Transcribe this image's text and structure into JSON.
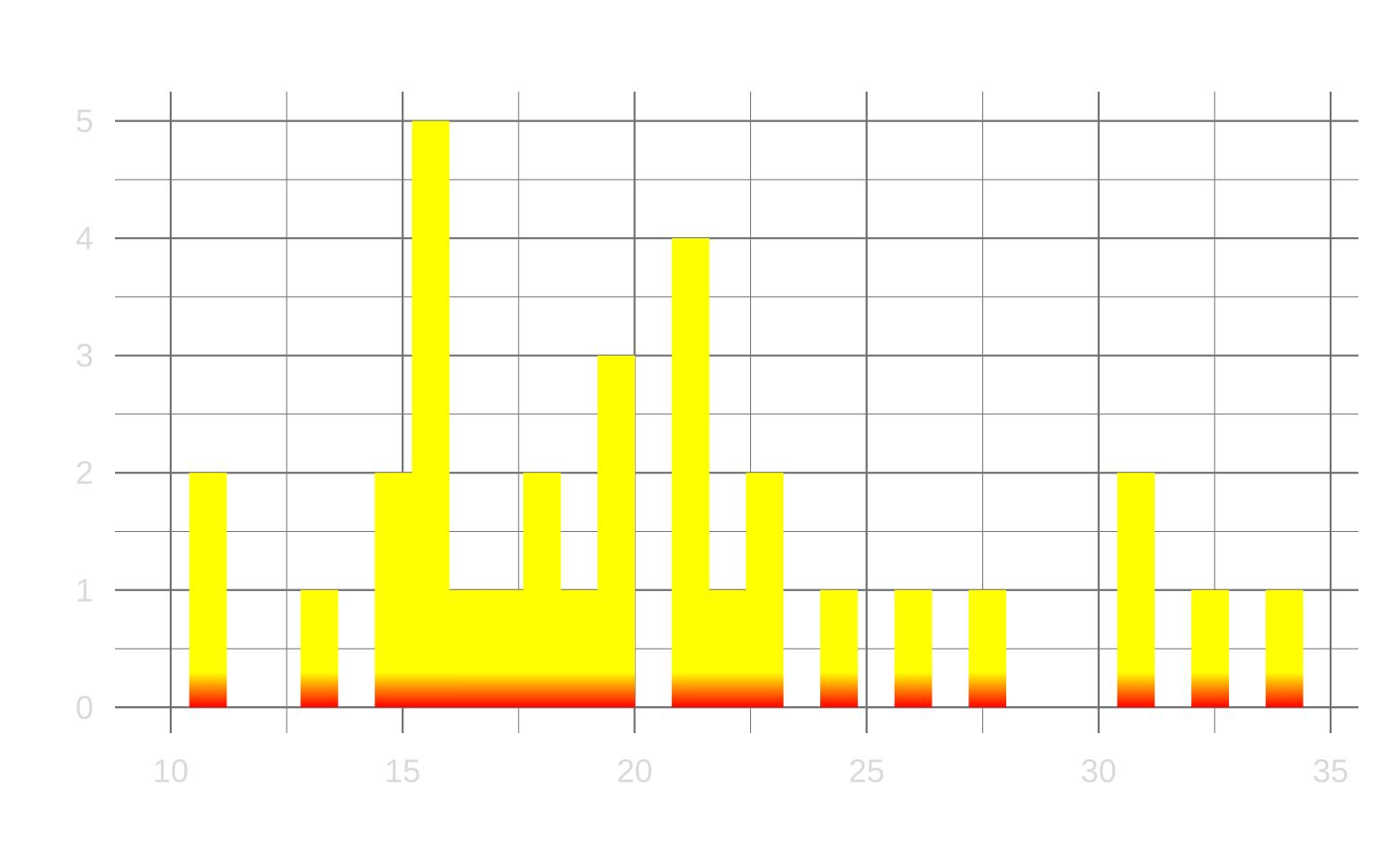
{
  "chart_data": {
    "type": "bar",
    "bin_width": 0.8,
    "x_ticks": [
      10,
      15,
      20,
      25,
      30,
      35
    ],
    "y_ticks": [
      0,
      1,
      2,
      3,
      4,
      5
    ],
    "x_tick_labels": [
      "10",
      "15",
      "20",
      "25",
      "30",
      "35"
    ],
    "y_tick_labels": [
      "0",
      "1",
      "2",
      "3",
      "4",
      "5"
    ],
    "xlim": [
      8.8,
      35.6
    ],
    "ylim": [
      -0.22,
      5.25
    ],
    "grid": true,
    "fill_gradient": {
      "top": "#ffff00",
      "bottom": "#ff0000"
    },
    "bars": [
      {
        "x0": 10.4,
        "x1": 11.2,
        "y": 2
      },
      {
        "x0": 12.8,
        "x1": 13.6,
        "y": 1
      },
      {
        "x0": 14.4,
        "x1": 15.2,
        "y": 2
      },
      {
        "x0": 15.2,
        "x1": 16.0,
        "y": 5
      },
      {
        "x0": 16.0,
        "x1": 16.8,
        "y": 1
      },
      {
        "x0": 16.8,
        "x1": 17.6,
        "y": 1
      },
      {
        "x0": 17.6,
        "x1": 18.4,
        "y": 2
      },
      {
        "x0": 18.4,
        "x1": 19.2,
        "y": 1
      },
      {
        "x0": 19.2,
        "x1": 20.0,
        "y": 3
      },
      {
        "x0": 20.8,
        "x1": 21.6,
        "y": 4
      },
      {
        "x0": 21.6,
        "x1": 22.4,
        "y": 1
      },
      {
        "x0": 22.4,
        "x1": 23.2,
        "y": 2
      },
      {
        "x0": 24.0,
        "x1": 24.8,
        "y": 1
      },
      {
        "x0": 25.6,
        "x1": 26.4,
        "y": 1
      },
      {
        "x0": 27.2,
        "x1": 28.0,
        "y": 1
      },
      {
        "x0": 30.4,
        "x1": 31.2,
        "y": 2
      },
      {
        "x0": 32.0,
        "x1": 32.8,
        "y": 1
      },
      {
        "x0": 33.6,
        "x1": 34.4,
        "y": 1
      }
    ],
    "colors": {
      "grid_major": "#707070",
      "grid_minor": "#7a7a7a",
      "tick_label": "#dadada",
      "background": "#ffffff"
    }
  }
}
